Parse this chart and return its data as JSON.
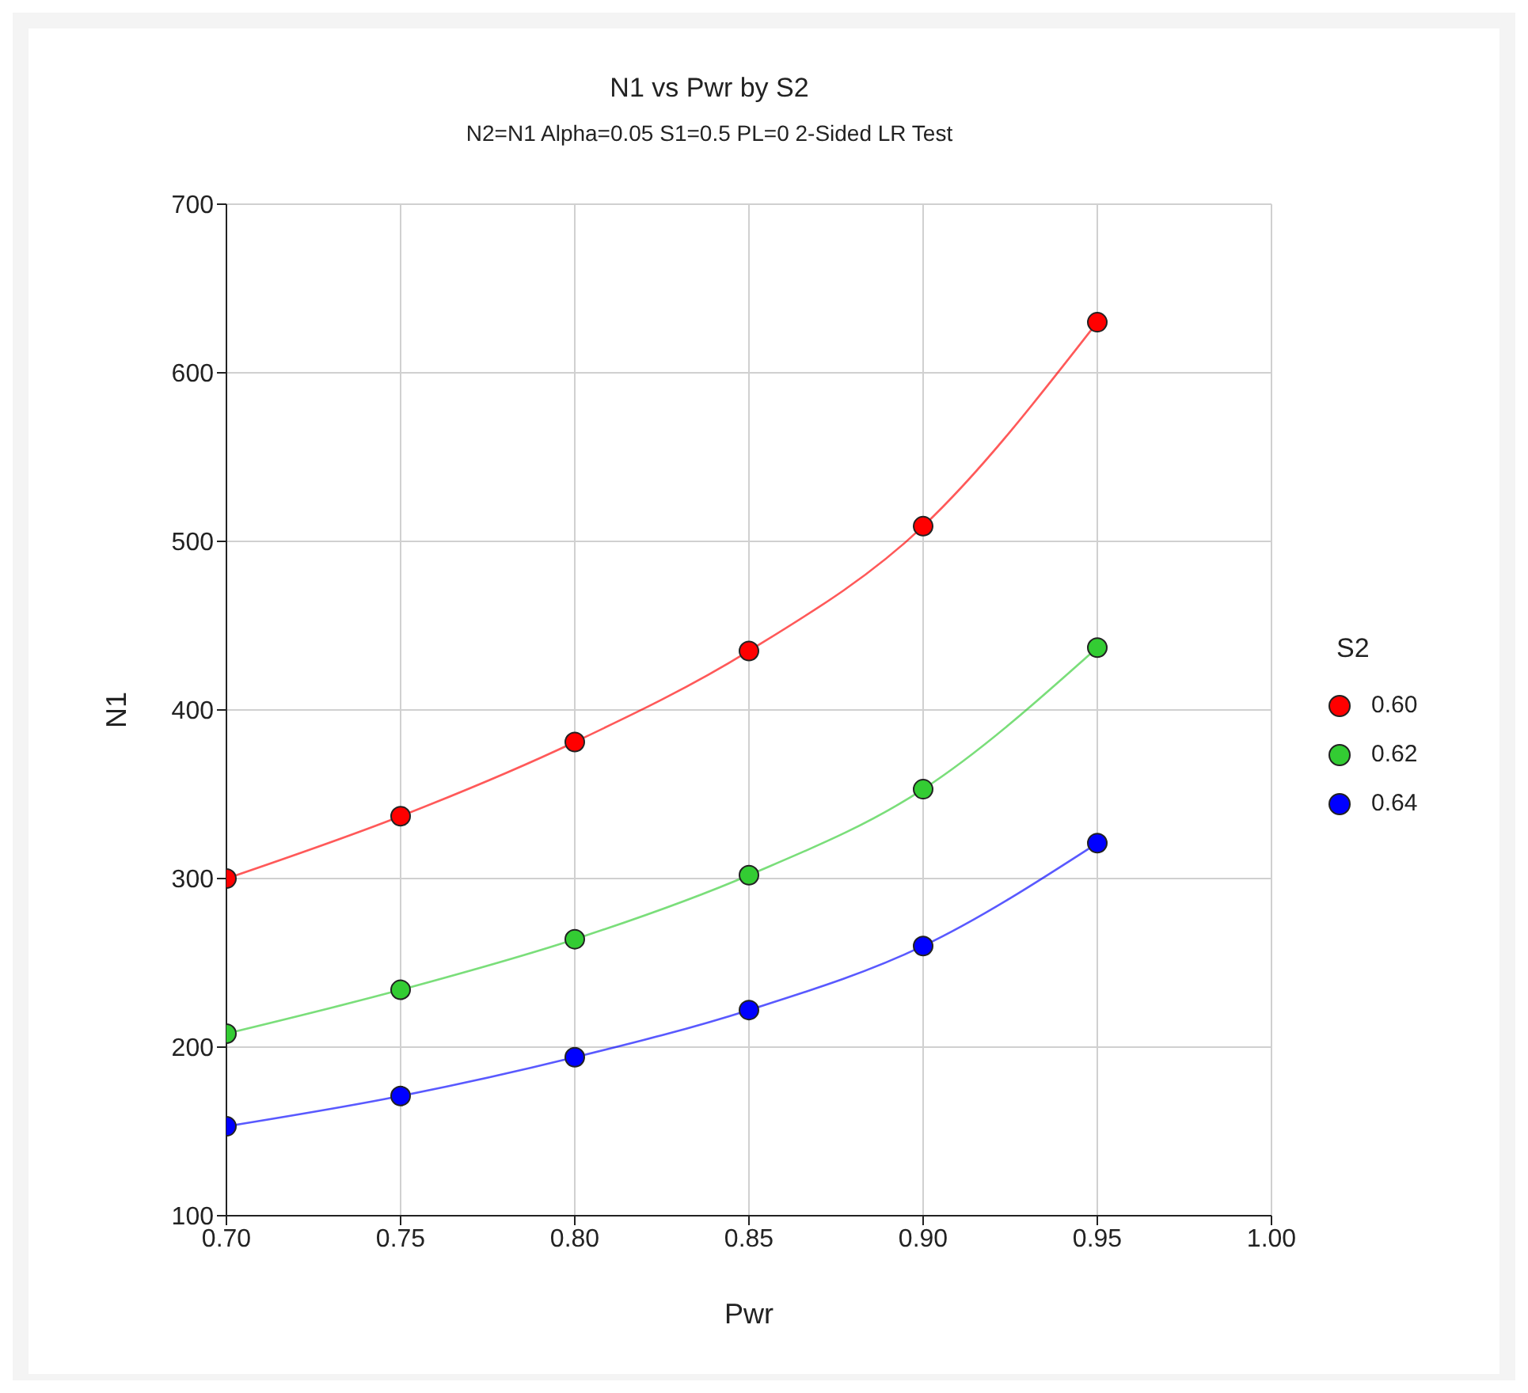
{
  "chart_data": {
    "type": "line",
    "title": "N1 vs Pwr by S2",
    "subtitle": "N2=N1 Alpha=0.05 S1=0.5 PL=0 2-Sided LR Test",
    "xlabel": "Pwr",
    "ylabel": "N1",
    "legend_title": "S2",
    "x": [
      0.7,
      0.75,
      0.8,
      0.85,
      0.9,
      0.95
    ],
    "series": [
      {
        "name": "0.60",
        "color": "#ff0000",
        "values": [
          300,
          337,
          381,
          435,
          509,
          630
        ]
      },
      {
        "name": "0.62",
        "color": "#33cc33",
        "values": [
          208,
          234,
          264,
          302,
          353,
          437
        ]
      },
      {
        "name": "0.64",
        "color": "#0000ff",
        "values": [
          153,
          171,
          194,
          222,
          260,
          321
        ]
      }
    ],
    "xlim": [
      0.7,
      1.0
    ],
    "xticks": [
      {
        "value": 0.7,
        "label": "0.70"
      },
      {
        "value": 0.75,
        "label": "0.75"
      },
      {
        "value": 0.8,
        "label": "0.80"
      },
      {
        "value": 0.85,
        "label": "0.85"
      },
      {
        "value": 0.9,
        "label": "0.90"
      },
      {
        "value": 0.95,
        "label": "0.95"
      },
      {
        "value": 1.0,
        "label": "1.00"
      }
    ],
    "ylim": [
      100,
      700
    ],
    "yticks": [
      100,
      200,
      300,
      400,
      500,
      600,
      700
    ],
    "grid": true,
    "legend": "right",
    "marker": "circle",
    "line_style": "solid"
  }
}
